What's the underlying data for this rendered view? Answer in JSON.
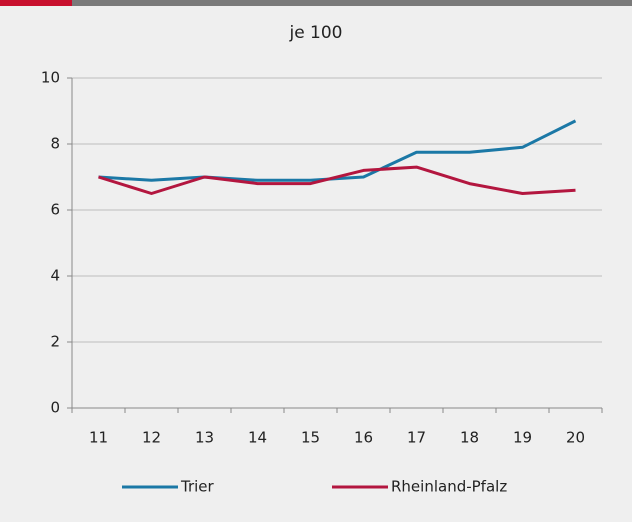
{
  "chart_data": {
    "type": "line",
    "title": "je 100",
    "categories": [
      "11",
      "12",
      "13",
      "14",
      "15",
      "16",
      "17",
      "18",
      "19",
      "20"
    ],
    "series": [
      {
        "name": "Trier",
        "color": "#1b78a6",
        "values": [
          7.0,
          6.9,
          7.0,
          6.9,
          6.9,
          7.0,
          7.75,
          7.75,
          7.9,
          8.7
        ]
      },
      {
        "name": "Rheinland-Pfalz",
        "color": "#b3163f",
        "values": [
          7.0,
          6.5,
          7.0,
          6.8,
          6.8,
          7.2,
          7.3,
          6.8,
          6.5,
          6.6
        ]
      }
    ],
    "ylim": [
      0,
      10
    ],
    "yticks": [
      0,
      2,
      4,
      6,
      8,
      10
    ],
    "grid": true,
    "legend": "bottom"
  }
}
